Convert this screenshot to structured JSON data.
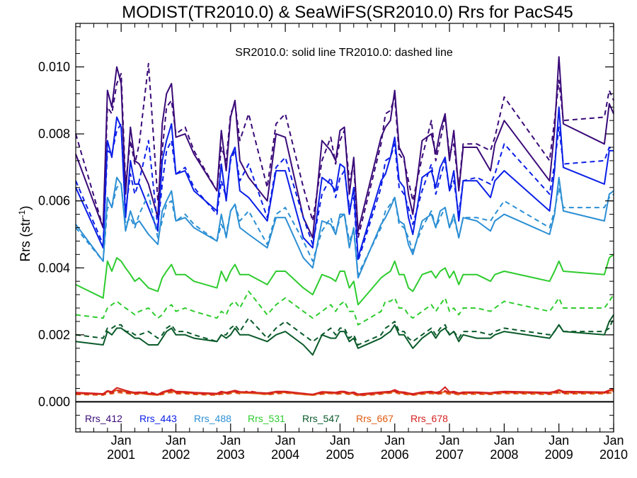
{
  "chart_data": {
    "type": "line",
    "title": "MODIST(TR2010.0) & SeaWiFS(SR2010.0)  Rrs for PacS45",
    "ylabel_main": "Rrs (str",
    "ylabel_sup": "-1",
    "ylabel_close": ")",
    "annotation": "SR2010.0: solid line   TR2010.0: dashed line",
    "xlim": [
      2000.17,
      2010.0
    ],
    "ylim": [
      -0.0009,
      0.0113
    ],
    "yticks": [
      0.0,
      0.002,
      0.004,
      0.006,
      0.008,
      0.01
    ],
    "ytick_labels": [
      "0.000",
      "0.002",
      "0.004",
      "0.006",
      "0.008",
      "0.010"
    ],
    "xticks": [
      {
        "x": 2001,
        "month": "Jan",
        "year": "2001"
      },
      {
        "x": 2002,
        "month": "Jan",
        "year": "2002"
      },
      {
        "x": 2003,
        "month": "Jan",
        "year": "2003"
      },
      {
        "x": 2004,
        "month": "Jan",
        "year": "2004"
      },
      {
        "x": 2005,
        "month": "Jan",
        "year": "2005"
      },
      {
        "x": 2006,
        "month": "Jan",
        "year": "2006"
      },
      {
        "x": 2007,
        "month": "Jan",
        "year": "2007"
      },
      {
        "x": 2008,
        "month": "Jan",
        "year": "2008"
      },
      {
        "x": 2009,
        "month": "Jan",
        "year": "2009"
      },
      {
        "x": 2010,
        "month": "Jan",
        "year": "2010"
      }
    ],
    "legend_position": "bottom",
    "x": [
      2000.17,
      2000.67,
      2000.75,
      2000.83,
      2000.92,
      2001.0,
      2001.08,
      2001.17,
      2001.25,
      2001.33,
      2001.5,
      2001.67,
      2001.75,
      2001.83,
      2001.92,
      2002.0,
      2002.17,
      2002.33,
      2002.75,
      2002.83,
      2002.92,
      2003.0,
      2003.08,
      2003.17,
      2003.33,
      2003.67,
      2003.83,
      2004.0,
      2004.33,
      2004.5,
      2004.67,
      2004.83,
      2004.92,
      2005.0,
      2005.08,
      2005.17,
      2005.25,
      2005.33,
      2005.75,
      2005.83,
      2005.92,
      2006.0,
      2006.08,
      2006.17,
      2006.25,
      2006.33,
      2006.5,
      2006.67,
      2006.75,
      2006.83,
      2006.92,
      2007.0,
      2007.08,
      2007.17,
      2007.25,
      2007.5,
      2007.75,
      2007.83,
      2008.0,
      2008.83,
      2008.92,
      2009.0,
      2009.08,
      2009.83,
      2009.92,
      2010.0
    ],
    "series": [
      {
        "name": "Rrs_412",
        "color": "#3a0a78",
        "solid": [
          0.0074,
          0.0052,
          0.0093,
          0.0088,
          0.01,
          0.0095,
          0.0062,
          0.0082,
          0.0072,
          0.0071,
          0.0065,
          0.0055,
          0.0083,
          0.0092,
          0.0095,
          0.0079,
          0.008,
          0.0074,
          0.0063,
          0.0081,
          0.0069,
          0.0085,
          0.009,
          0.0072,
          0.0067,
          0.006,
          0.008,
          0.0079,
          0.0055,
          0.0049,
          0.0078,
          0.0075,
          0.0072,
          0.0081,
          0.0082,
          0.0062,
          0.0073,
          0.0051,
          0.0079,
          0.0082,
          0.0084,
          0.0093,
          0.0076,
          0.0073,
          0.0062,
          0.0056,
          0.0078,
          0.008,
          0.0074,
          0.0081,
          0.0086,
          0.0072,
          0.0081,
          0.0063,
          0.0076,
          0.0076,
          0.0069,
          0.0077,
          0.0084,
          0.0066,
          0.0081,
          0.0103,
          0.0083,
          0.0077,
          0.0089,
          0.0086
        ]
      },
      {
        "name": "Rrs_443",
        "color": "#0a1ee6",
        "solid": [
          0.0064,
          0.0046,
          0.0078,
          0.0073,
          0.0085,
          0.0082,
          0.0055,
          0.0072,
          0.0065,
          0.0065,
          0.0058,
          0.0051,
          0.0072,
          0.0078,
          0.0083,
          0.0068,
          0.0069,
          0.0063,
          0.0057,
          0.0071,
          0.006,
          0.0073,
          0.0076,
          0.0063,
          0.0061,
          0.0054,
          0.0069,
          0.0069,
          0.0049,
          0.0046,
          0.0067,
          0.0065,
          0.0063,
          0.0071,
          0.007,
          0.0056,
          0.0064,
          0.0043,
          0.0066,
          0.0068,
          0.0073,
          0.0079,
          0.0066,
          0.0064,
          0.0055,
          0.005,
          0.0067,
          0.0069,
          0.0064,
          0.007,
          0.0073,
          0.0063,
          0.0069,
          0.0054,
          0.0066,
          0.0066,
          0.0061,
          0.0066,
          0.0069,
          0.0057,
          0.0069,
          0.0088,
          0.007,
          0.0065,
          0.0075,
          0.0075
        ]
      },
      {
        "name": "Rrs_488",
        "color": "#2c8fd4",
        "solid": [
          0.0053,
          0.0042,
          0.0061,
          0.0058,
          0.0067,
          0.0065,
          0.0051,
          0.0057,
          0.0053,
          0.0054,
          0.005,
          0.0047,
          0.0057,
          0.006,
          0.0063,
          0.0054,
          0.0055,
          0.0052,
          0.0048,
          0.0056,
          0.0049,
          0.0057,
          0.0059,
          0.0052,
          0.005,
          0.0046,
          0.0055,
          0.0055,
          0.0043,
          0.004,
          0.0054,
          0.0053,
          0.005,
          0.0056,
          0.0056,
          0.0046,
          0.0052,
          0.0037,
          0.0053,
          0.0055,
          0.0058,
          0.0061,
          0.0054,
          0.0053,
          0.0047,
          0.0044,
          0.0054,
          0.0056,
          0.0052,
          0.0057,
          0.0058,
          0.0052,
          0.0056,
          0.0049,
          0.0055,
          0.0054,
          0.0051,
          0.0054,
          0.0056,
          0.005,
          0.0056,
          0.0067,
          0.0057,
          0.0054,
          0.0062,
          0.0063
        ]
      },
      {
        "name": "Rrs_531",
        "color": "#2ecc2e",
        "solid": [
          0.0035,
          0.0031,
          0.0042,
          0.0039,
          0.0043,
          0.0042,
          0.004,
          0.0038,
          0.0036,
          0.0037,
          0.0034,
          0.0033,
          0.0037,
          0.0039,
          0.0041,
          0.0038,
          0.0038,
          0.0036,
          0.0034,
          0.0039,
          0.0036,
          0.0039,
          0.0041,
          0.0038,
          0.0038,
          0.0035,
          0.0039,
          0.0039,
          0.0034,
          0.0032,
          0.0038,
          0.0037,
          0.0036,
          0.0039,
          0.0039,
          0.0034,
          0.0036,
          0.0029,
          0.0037,
          0.0038,
          0.0039,
          0.0042,
          0.0038,
          0.0038,
          0.0034,
          0.0033,
          0.0038,
          0.0039,
          0.0037,
          0.0039,
          0.004,
          0.0037,
          0.0039,
          0.0035,
          0.0038,
          0.0038,
          0.0036,
          0.0038,
          0.0039,
          0.0036,
          0.0039,
          0.0042,
          0.0039,
          0.0038,
          0.0043,
          0.0044
        ]
      },
      {
        "name": "Rrs_547",
        "color": "#0a5a2a",
        "solid": [
          0.0018,
          0.0017,
          0.0021,
          0.002,
          0.0022,
          0.0022,
          0.0021,
          0.002,
          0.0019,
          0.0019,
          0.0017,
          0.0017,
          0.0019,
          0.0021,
          0.0022,
          0.002,
          0.002,
          0.0019,
          0.0018,
          0.002,
          0.0019,
          0.002,
          0.0022,
          0.002,
          0.002,
          0.0018,
          0.002,
          0.0021,
          0.0017,
          0.0014,
          0.002,
          0.0019,
          0.0019,
          0.0021,
          0.0021,
          0.0018,
          0.0019,
          0.0016,
          0.0019,
          0.002,
          0.0021,
          0.0023,
          0.002,
          0.002,
          0.0018,
          0.0016,
          0.0019,
          0.0021,
          0.0019,
          0.0021,
          0.0022,
          0.002,
          0.0021,
          0.0018,
          0.002,
          0.0019,
          0.0019,
          0.002,
          0.0021,
          0.0019,
          0.0021,
          0.0023,
          0.0021,
          0.002,
          0.0024,
          0.0026
        ]
      },
      {
        "name": "Rrs_667",
        "color": "#e05a10",
        "solid": [
          0.00025,
          0.00022,
          0.0003,
          0.00028,
          0.00035,
          0.00033,
          0.0003,
          0.00027,
          0.00025,
          0.00026,
          0.00022,
          0.0002,
          0.00026,
          0.0003,
          0.00033,
          0.00028,
          0.00027,
          0.00025,
          0.00022,
          0.00028,
          0.00025,
          0.00028,
          0.0003,
          0.00027,
          0.00026,
          0.00023,
          0.00028,
          0.00028,
          0.00022,
          0.0002,
          0.00027,
          0.00026,
          0.00025,
          0.00028,
          0.00028,
          0.00024,
          0.00026,
          0.0002,
          0.00026,
          0.00027,
          0.00028,
          0.00032,
          0.00027,
          0.00026,
          0.00023,
          0.00021,
          0.00026,
          0.00028,
          0.00025,
          0.00028,
          0.0003,
          0.00026,
          0.00028,
          0.00023,
          0.00026,
          0.00026,
          0.00024,
          0.00026,
          0.00028,
          0.00025,
          0.00028,
          0.00033,
          0.00028,
          0.00026,
          0.00032,
          0.00035
        ]
      },
      {
        "name": "Rrs_678",
        "color": "#d42020",
        "solid": [
          0.00028,
          0.00024,
          0.00033,
          0.0003,
          0.00042,
          0.00038,
          0.00034,
          0.0003,
          0.00028,
          0.00029,
          0.00025,
          0.00022,
          0.00029,
          0.00033,
          0.00037,
          0.00031,
          0.0003,
          0.00028,
          0.00025,
          0.00031,
          0.00028,
          0.00031,
          0.00034,
          0.0003,
          0.00029,
          0.00026,
          0.00031,
          0.00031,
          0.00025,
          0.00022,
          0.0003,
          0.00029,
          0.00028,
          0.00031,
          0.00031,
          0.00027,
          0.00029,
          0.00023,
          0.00029,
          0.0003,
          0.00031,
          0.00036,
          0.0003,
          0.00029,
          0.00026,
          0.00024,
          0.00029,
          0.00031,
          0.00028,
          0.00031,
          0.00044,
          0.00029,
          0.00031,
          0.00026,
          0.00029,
          0.00029,
          0.00027,
          0.00029,
          0.00031,
          0.00028,
          0.00031,
          0.00036,
          0.00031,
          0.00029,
          0.00035,
          0.00039
        ]
      }
    ],
    "series_dashed": [
      [
        0.008,
        0.0052,
        0.0088,
        0.0086,
        0.0095,
        0.0098,
        0.0065,
        0.0078,
        0.0071,
        0.0077,
        0.0101,
        0.006,
        0.0075,
        0.0088,
        0.009,
        0.008,
        0.0082,
        0.0075,
        0.0063,
        0.0076,
        0.0072,
        0.0086,
        0.0089,
        0.0078,
        0.0086,
        0.0064,
        0.0083,
        0.0086,
        0.0064,
        0.0054,
        0.0072,
        0.0079,
        0.0071,
        0.0078,
        0.0081,
        0.0066,
        0.0071,
        0.0049,
        0.0077,
        0.0086,
        0.0087,
        0.0091,
        0.0074,
        0.0072,
        0.0066,
        0.006,
        0.0073,
        0.0084,
        0.0072,
        0.0078,
        0.0085,
        0.0074,
        0.0077,
        0.0064,
        0.0077,
        0.0077,
        0.0075,
        0.0079,
        0.0091,
        0.0072,
        0.0084,
        0.0096,
        0.0084,
        0.0085,
        0.0093,
        0.009
      ],
      [
        0.0066,
        0.0047,
        0.0075,
        0.0074,
        0.0081,
        0.0083,
        0.0057,
        0.0068,
        0.0062,
        0.0066,
        0.0078,
        0.0052,
        0.0065,
        0.0075,
        0.0078,
        0.0068,
        0.007,
        0.0064,
        0.0056,
        0.0066,
        0.0061,
        0.0072,
        0.0075,
        0.0066,
        0.0071,
        0.0055,
        0.007,
        0.0073,
        0.0055,
        0.0047,
        0.0062,
        0.0067,
        0.0061,
        0.0067,
        0.0069,
        0.0058,
        0.0061,
        0.0042,
        0.0064,
        0.0072,
        0.0073,
        0.0077,
        0.0064,
        0.0062,
        0.0058,
        0.0053,
        0.0063,
        0.0071,
        0.0062,
        0.0067,
        0.0072,
        0.0063,
        0.0066,
        0.0056,
        0.0066,
        0.0067,
        0.0065,
        0.0068,
        0.0077,
        0.0062,
        0.0071,
        0.0082,
        0.0071,
        0.0072,
        0.0076,
        0.0075
      ],
      [
        0.0052,
        0.0042,
        0.0058,
        0.0058,
        0.0064,
        0.0065,
        0.0053,
        0.0055,
        0.0052,
        0.0056,
        0.0062,
        0.0049,
        0.0054,
        0.0059,
        0.006,
        0.0054,
        0.0056,
        0.0053,
        0.0048,
        0.0053,
        0.005,
        0.0057,
        0.0059,
        0.0054,
        0.0057,
        0.0047,
        0.0056,
        0.0058,
        0.0048,
        0.0042,
        0.0051,
        0.0055,
        0.005,
        0.0055,
        0.0056,
        0.0048,
        0.0051,
        0.0038,
        0.0052,
        0.0057,
        0.0059,
        0.0061,
        0.0053,
        0.0052,
        0.0049,
        0.0045,
        0.0052,
        0.0057,
        0.0052,
        0.0055,
        0.0058,
        0.0052,
        0.0055,
        0.0049,
        0.0055,
        0.0055,
        0.0054,
        0.0056,
        0.006,
        0.0052,
        0.0057,
        0.0064,
        0.0058,
        0.0058,
        0.0061,
        0.0062
      ],
      [
        0.0026,
        0.0025,
        0.0028,
        0.0029,
        0.003,
        0.0029,
        0.0028,
        0.0027,
        0.0026,
        0.0027,
        0.0028,
        0.0025,
        0.0026,
        0.0028,
        0.0029,
        0.0027,
        0.0028,
        0.0027,
        0.0025,
        0.0027,
        0.0026,
        0.0029,
        0.003,
        0.0028,
        0.0033,
        0.0026,
        0.0029,
        0.0031,
        0.0027,
        0.0025,
        0.0027,
        0.0029,
        0.0027,
        0.0029,
        0.003,
        0.0027,
        0.0027,
        0.0023,
        0.0027,
        0.003,
        0.003,
        0.0031,
        0.0028,
        0.0028,
        0.0026,
        0.0025,
        0.0027,
        0.0029,
        0.0027,
        0.0029,
        0.0031,
        0.0027,
        0.0028,
        0.0026,
        0.0028,
        0.0028,
        0.0027,
        0.0028,
        0.003,
        0.0027,
        0.0029,
        0.0031,
        0.0028,
        0.0028,
        0.003,
        0.0032
      ],
      [
        0.002,
        0.0019,
        0.0022,
        0.0022,
        0.0023,
        0.0023,
        0.0021,
        0.0021,
        0.002,
        0.002,
        0.0021,
        0.0019,
        0.002,
        0.0022,
        0.0023,
        0.0021,
        0.0021,
        0.002,
        0.0018,
        0.002,
        0.002,
        0.0022,
        0.0023,
        0.0021,
        0.0025,
        0.0019,
        0.0022,
        0.0024,
        0.002,
        0.0018,
        0.002,
        0.0022,
        0.002,
        0.0022,
        0.0022,
        0.0019,
        0.002,
        0.0017,
        0.002,
        0.0022,
        0.0023,
        0.0024,
        0.0021,
        0.0021,
        0.0019,
        0.0018,
        0.002,
        0.0022,
        0.002,
        0.0022,
        0.0023,
        0.002,
        0.0021,
        0.0019,
        0.0021,
        0.0021,
        0.002,
        0.0021,
        0.0022,
        0.002,
        0.0021,
        0.0023,
        0.0021,
        0.0021,
        0.0022,
        0.0025
      ],
      [
        0.00022,
        0.0002,
        0.00025,
        0.00024,
        0.00028,
        0.00027,
        0.00025,
        0.00024,
        0.00022,
        0.00024,
        0.00026,
        0.0002,
        0.00022,
        0.00026,
        0.00028,
        0.00024,
        0.00024,
        0.00022,
        0.0002,
        0.00023,
        0.00022,
        0.00025,
        0.00027,
        0.00024,
        0.00028,
        0.00021,
        0.00024,
        0.00026,
        0.00022,
        0.0002,
        0.00023,
        0.00025,
        0.00022,
        0.00024,
        0.00025,
        0.00022,
        0.00023,
        0.00018,
        0.00023,
        0.00025,
        0.00026,
        0.00028,
        0.00024,
        0.00023,
        0.00021,
        0.0002,
        0.00023,
        0.00025,
        0.00022,
        0.00024,
        0.00026,
        0.00023,
        0.00024,
        0.00021,
        0.00023,
        0.00023,
        0.00022,
        0.00023,
        0.00025,
        0.00022,
        0.00024,
        0.00027,
        0.00024,
        0.00024,
        0.00026,
        0.00028
      ],
      [
        0.00025,
        0.00022,
        0.00028,
        0.00027,
        0.00033,
        0.00031,
        0.00028,
        0.00027,
        0.00025,
        0.00027,
        0.0003,
        0.00022,
        0.00025,
        0.0003,
        0.00032,
        0.00027,
        0.00027,
        0.00025,
        0.00022,
        0.00026,
        0.00025,
        0.00028,
        0.0003,
        0.00027,
        0.00032,
        0.00024,
        0.00027,
        0.00029,
        0.00025,
        0.00022,
        0.00026,
        0.00028,
        0.00025,
        0.00027,
        0.00028,
        0.00025,
        0.00026,
        0.0002,
        0.00026,
        0.00028,
        0.00029,
        0.00031,
        0.00027,
        0.00026,
        0.00024,
        0.00022,
        0.00026,
        0.00028,
        0.00025,
        0.00027,
        0.00033,
        0.00026,
        0.00027,
        0.00024,
        0.00026,
        0.00026,
        0.00025,
        0.00026,
        0.00028,
        0.00025,
        0.00027,
        0.0003,
        0.00027,
        0.00027,
        0.00029,
        0.00031
      ]
    ]
  }
}
